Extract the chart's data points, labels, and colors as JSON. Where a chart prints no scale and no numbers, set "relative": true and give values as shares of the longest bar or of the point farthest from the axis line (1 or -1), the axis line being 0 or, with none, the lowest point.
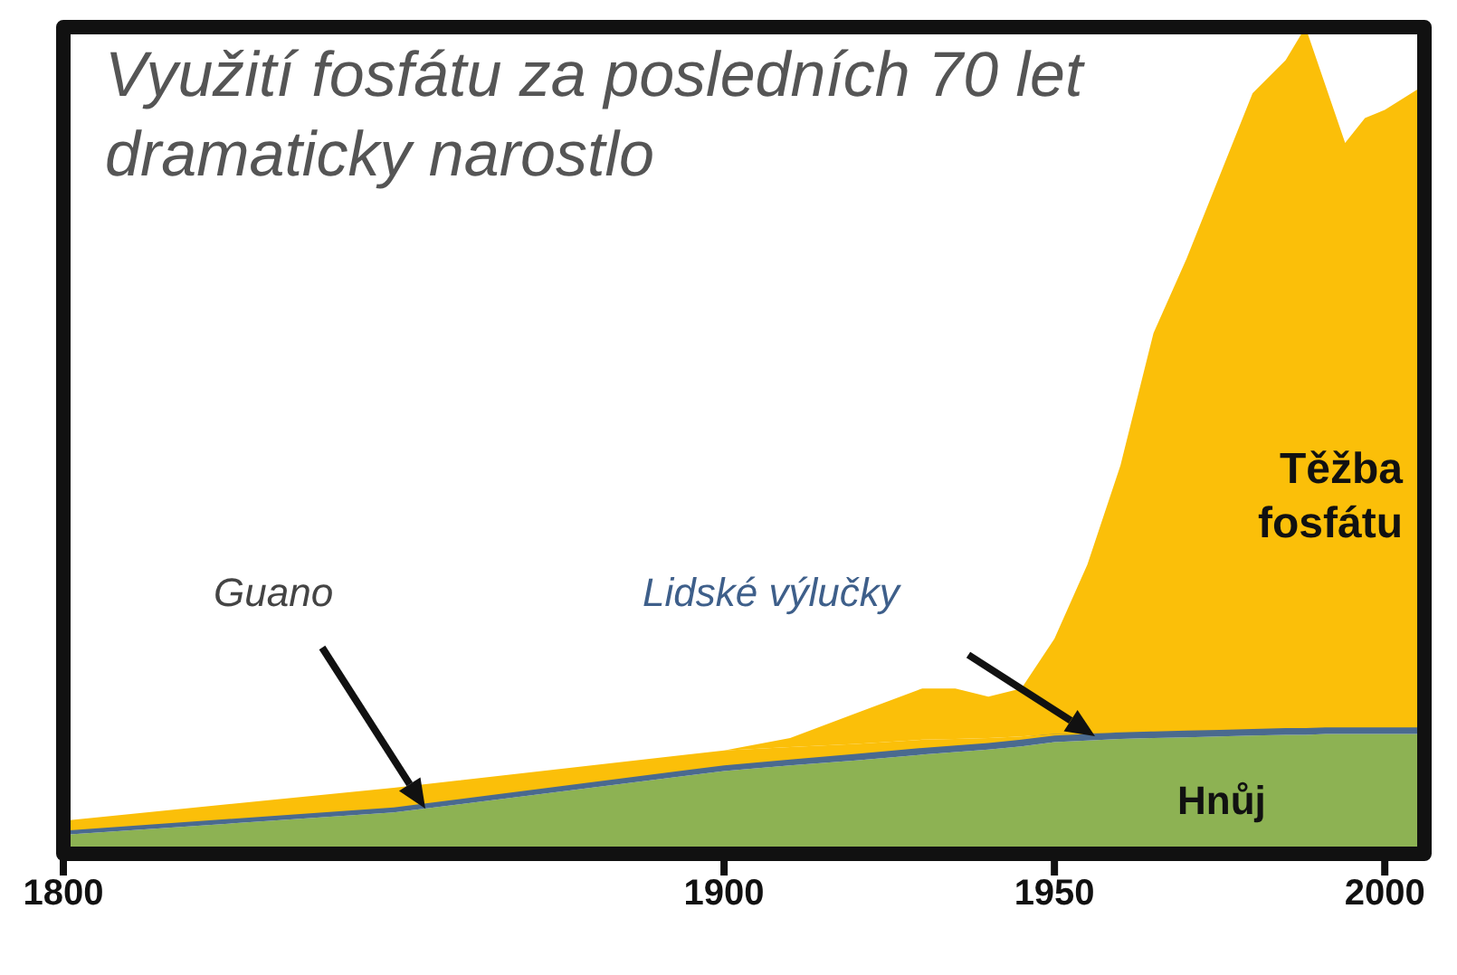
{
  "chart_data": {
    "type": "area",
    "title": "Využití fosfátu za posledních 70 let dramaticky narostlo",
    "relative": true,
    "stacked": true,
    "x": [
      1800,
      1850,
      1900,
      1910,
      1920,
      1930,
      1935,
      1940,
      1945,
      1950,
      1955,
      1960,
      1965,
      1970,
      1975,
      1980,
      1985,
      1988,
      1991,
      1994,
      1997,
      2000,
      2006
    ],
    "xlim": [
      1800,
      2006
    ],
    "xticks": [
      1800,
      1900,
      1950,
      2000
    ],
    "series": [
      {
        "name": "Hnůj",
        "color": "#8db253",
        "values": [
          0.023,
          0.05,
          0.1,
          0.107,
          0.113,
          0.12,
          0.123,
          0.126,
          0.13,
          0.135,
          0.137,
          0.139,
          0.14,
          0.141,
          0.142,
          0.143,
          0.144,
          0.144,
          0.145,
          0.145,
          0.145,
          0.145,
          0.145
        ]
      },
      {
        "name": "Lidské výlučky",
        "color": "#4a6a8f",
        "values": [
          0.005,
          0.006,
          0.007,
          0.007,
          0.008,
          0.008,
          0.008,
          0.008,
          0.008,
          0.008,
          0.008,
          0.008,
          0.008,
          0.008,
          0.008,
          0.008,
          0.008,
          0.008,
          0.008,
          0.008,
          0.008,
          0.008,
          0.008
        ]
      },
      {
        "name": "Guano",
        "color": "#fbbf09",
        "values": [
          0.012,
          0.024,
          0.018,
          0.015,
          0.012,
          0.01,
          0.008,
          0.006,
          0.004,
          0.002,
          0.001,
          0,
          0,
          0,
          0,
          0,
          0,
          0,
          0,
          0,
          0,
          0,
          0
        ]
      },
      {
        "name": "Těžba fosfátu",
        "color": "#fbbf09",
        "values": [
          0,
          0,
          0,
          0.011,
          0.037,
          0.062,
          0.061,
          0.05,
          0.058,
          0.115,
          0.204,
          0.323,
          0.482,
          0.571,
          0.67,
          0.769,
          0.808,
          0.848,
          0.777,
          0.707,
          0.737,
          0.747,
          0.777
        ]
      }
    ]
  }
}
